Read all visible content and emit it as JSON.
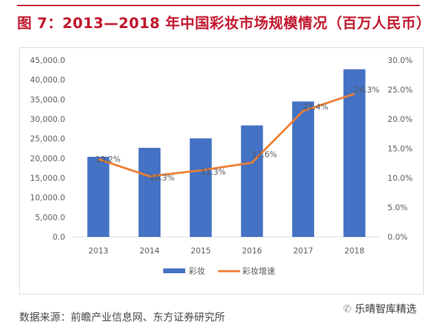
{
  "header": {
    "title": "图 7：2013—2018 年中国彩妆市场规模情况（百万人民币）"
  },
  "footer": {
    "source": "数据来源：前瞻产业信息网、东方证券研究所",
    "watermark": "乐晴智库精选",
    "watermark_icon": "wechat-icon"
  },
  "chart_data": {
    "type": "bar+line",
    "categories": [
      "2013",
      "2014",
      "2015",
      "2016",
      "2017",
      "2018"
    ],
    "series": [
      {
        "name": "彩妆",
        "type": "bar",
        "axis": "left",
        "color": "#4472c4",
        "values": [
          20400,
          22700,
          25100,
          28400,
          34500,
          42700
        ]
      },
      {
        "name": "彩妆增速",
        "type": "line",
        "axis": "right",
        "color": "#ed7d31",
        "values": [
          13.2,
          10.3,
          11.3,
          12.6,
          21.4,
          24.3
        ],
        "labels": [
          "13.2%",
          "10.3%",
          "11.3%",
          "12.6%",
          "21.4%",
          "24.3%"
        ]
      }
    ],
    "ylim_left": [
      0,
      45000
    ],
    "yticks_left": [
      "0.0",
      "5,000.0",
      "10,000.0",
      "15,000.0",
      "20,000.0",
      "25,000.0",
      "30,000.0",
      "35,000.0",
      "40,000.0",
      "45,000.0"
    ],
    "ylim_right": [
      0,
      30
    ],
    "yticks_right": [
      "0.0%",
      "5.0%",
      "10.0%",
      "15.0%",
      "20.0%",
      "25.0%",
      "30.0%"
    ],
    "grid": false,
    "legend": "bottom"
  }
}
